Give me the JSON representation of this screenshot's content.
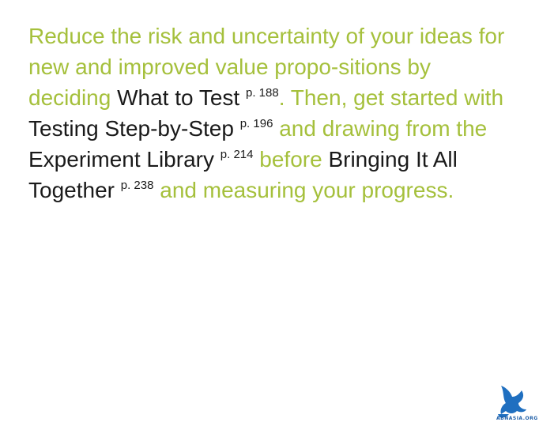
{
  "paragraph": [
    "Reduce the risk and uncertainty of your ideas for new and improved value propo-sitions by deciding ",
    {
      "title": "What to Test",
      "page": "p. 188"
    },
    ". Then, get started with ",
    {
      "title": "Testing Step-by-Step",
      "page": "p. 196"
    },
    " and drawing from the ",
    {
      "title": "Experiment Library",
      "page": "p. 214"
    },
    " before ",
    {
      "title": "Bringing It All Together",
      "page": "p. 238"
    },
    " and measuring your progress."
  ],
  "logo": {
    "text": "ABNASIA.ORG"
  }
}
